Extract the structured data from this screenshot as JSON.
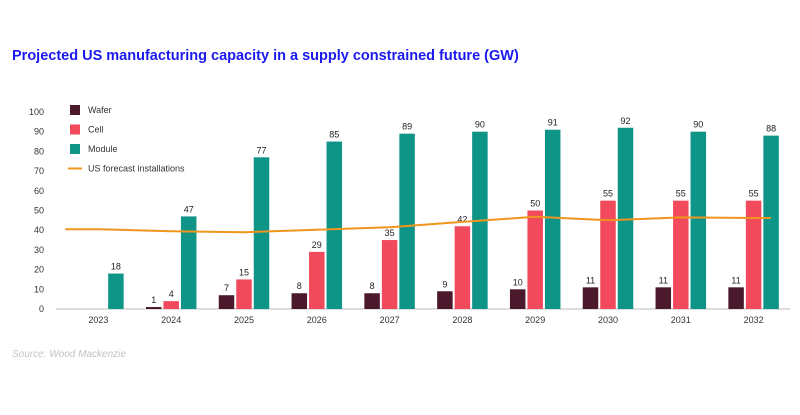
{
  "title": "Projected US manufacturing capacity in a supply constrained future (GW)",
  "source": "Source: Wood Mackenzie",
  "chart_data": {
    "type": "bar",
    "title": "Projected US manufacturing capacity in a supply constrained future (GW)",
    "xlabel": "",
    "ylabel": "",
    "ylim": [
      0,
      100
    ],
    "yticks": [
      0,
      10,
      20,
      30,
      40,
      50,
      60,
      70,
      80,
      90,
      100
    ],
    "grid": false,
    "legend_position": "top-left",
    "categories": [
      "2023",
      "2024",
      "2025",
      "2026",
      "2027",
      "2028",
      "2029",
      "2030",
      "2031",
      "2032"
    ],
    "series": [
      {
        "name": "Wafer",
        "type": "bar",
        "color": "#4a1a2c",
        "values": [
          0,
          1,
          7,
          8,
          8,
          9,
          10,
          11,
          11,
          11
        ],
        "labels": [
          "",
          "1",
          "7",
          "8",
          "8",
          "9",
          "10",
          "11",
          "11",
          "11"
        ]
      },
      {
        "name": "Cell",
        "type": "bar",
        "color": "#f04a5c",
        "values": [
          0,
          4,
          15,
          29,
          35,
          42,
          50,
          55,
          55,
          55
        ],
        "labels": [
          "",
          "4",
          "15",
          "29",
          "35",
          "42",
          "50",
          "55",
          "55",
          "55"
        ]
      },
      {
        "name": "Module",
        "type": "bar",
        "color": "#0f9488",
        "values": [
          18,
          47,
          77,
          85,
          89,
          90,
          91,
          92,
          90,
          88
        ],
        "labels": [
          "18",
          "47",
          "77",
          "85",
          "89",
          "90",
          "91",
          "92",
          "90",
          "88"
        ]
      },
      {
        "name": "US forecast installations",
        "type": "line",
        "color": "#f0961e",
        "values": [
          40.5,
          39.5,
          39,
          40.2,
          41.5,
          44.2,
          46.8,
          45,
          46.5,
          46.2
        ]
      }
    ]
  }
}
